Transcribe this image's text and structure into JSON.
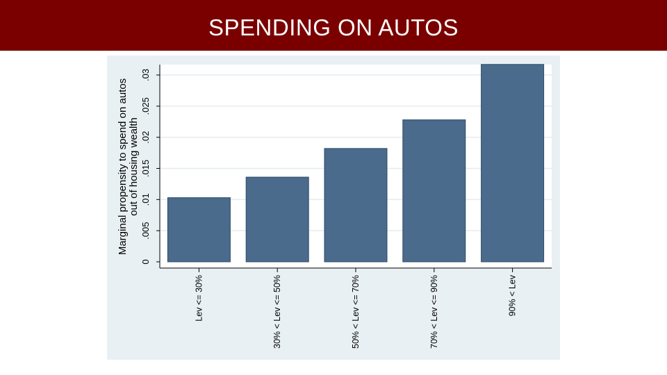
{
  "slide": {
    "title": "SPENDING ON AUTOS"
  },
  "colors": {
    "title_bar": "#7a0000",
    "title_text": "#ffffff",
    "panel_background": "#e9f0f3",
    "plot_background": "#ffffff",
    "bar_fill": "#4a6b8c",
    "bar_stroke": "#2f4a66",
    "gridline": "#e3ecf1",
    "axis": "#000000"
  },
  "chart_data": {
    "type": "bar",
    "title": "",
    "ylabel": "Marginal propensity to spend on autos out of housing wealth",
    "ylabel_lines": [
      "Marginal propensity to spend on autos",
      "out of housing wealth"
    ],
    "xlabel": "",
    "categories": [
      "Lev <= 30%",
      "30% < Lev <= 50%",
      "50% < Lev <= 70%",
      "70% < Lev <= 90%",
      "90% < Lev"
    ],
    "values": [
      0.0103,
      0.0136,
      0.0182,
      0.0228,
      0.0317
    ],
    "ylim": [
      0,
      0.0325
    ],
    "yticks": [
      0,
      0.005,
      0.01,
      0.015,
      0.02,
      0.025,
      0.03
    ],
    "ytick_labels": [
      "0",
      ".005",
      ".01",
      ".015",
      ".02",
      ".025",
      ".03"
    ],
    "grid": true,
    "legend": "none",
    "orientation_note": "tick labels rotated vertically"
  }
}
